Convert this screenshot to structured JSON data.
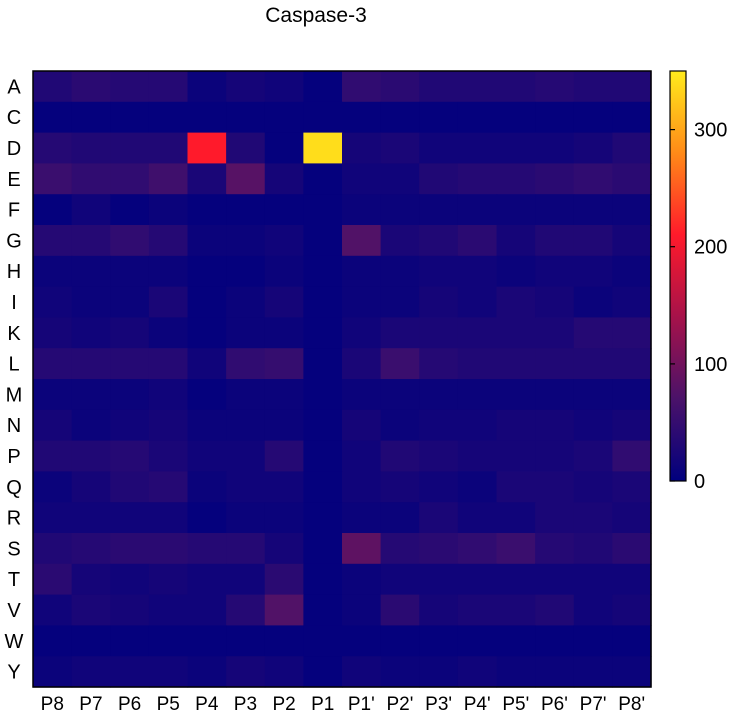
{
  "chart_data": {
    "type": "heatmap",
    "title": "Caspase-3",
    "xlabel": "",
    "ylabel": "",
    "x": [
      "P8",
      "P7",
      "P6",
      "P5",
      "P4",
      "P3",
      "P2",
      "P1",
      "P1'",
      "P2'",
      "P3'",
      "P4'",
      "P5'",
      "P6'",
      "P7'",
      "P8'"
    ],
    "y": [
      "A",
      "C",
      "D",
      "E",
      "F",
      "G",
      "H",
      "I",
      "K",
      "L",
      "M",
      "N",
      "P",
      "Q",
      "R",
      "S",
      "T",
      "V",
      "W",
      "Y"
    ],
    "values": [
      [
        30,
        40,
        35,
        35,
        10,
        20,
        15,
        5,
        45,
        40,
        30,
        30,
        30,
        35,
        30,
        30
      ],
      [
        5,
        5,
        5,
        5,
        5,
        5,
        5,
        5,
        5,
        5,
        5,
        5,
        5,
        5,
        5,
        5
      ],
      [
        35,
        30,
        30,
        30,
        210,
        30,
        5,
        340,
        20,
        25,
        15,
        15,
        15,
        15,
        20,
        30
      ],
      [
        55,
        45,
        45,
        60,
        25,
        80,
        20,
        5,
        15,
        15,
        30,
        35,
        35,
        40,
        45,
        40
      ],
      [
        5,
        15,
        5,
        10,
        5,
        5,
        5,
        5,
        10,
        10,
        10,
        10,
        10,
        10,
        10,
        10
      ],
      [
        35,
        35,
        45,
        35,
        10,
        10,
        15,
        5,
        75,
        25,
        30,
        40,
        20,
        30,
        30,
        20
      ],
      [
        10,
        10,
        10,
        10,
        5,
        5,
        10,
        5,
        10,
        10,
        15,
        15,
        10,
        15,
        15,
        10
      ],
      [
        15,
        10,
        10,
        25,
        5,
        10,
        20,
        5,
        10,
        10,
        20,
        15,
        25,
        20,
        10,
        15
      ],
      [
        20,
        15,
        20,
        10,
        5,
        10,
        10,
        5,
        15,
        25,
        25,
        25,
        25,
        25,
        35,
        35
      ],
      [
        35,
        35,
        35,
        35,
        15,
        45,
        50,
        5,
        25,
        55,
        35,
        30,
        30,
        30,
        30,
        30
      ],
      [
        10,
        10,
        10,
        15,
        5,
        10,
        10,
        5,
        10,
        10,
        10,
        10,
        10,
        10,
        10,
        10
      ],
      [
        20,
        10,
        15,
        20,
        10,
        10,
        10,
        5,
        20,
        10,
        15,
        15,
        20,
        20,
        15,
        20
      ],
      [
        30,
        30,
        35,
        25,
        15,
        15,
        35,
        5,
        15,
        30,
        25,
        20,
        20,
        20,
        25,
        45
      ],
      [
        10,
        20,
        30,
        35,
        10,
        15,
        15,
        5,
        15,
        20,
        15,
        10,
        25,
        25,
        20,
        25
      ],
      [
        15,
        15,
        15,
        15,
        5,
        10,
        10,
        5,
        10,
        10,
        25,
        15,
        15,
        25,
        25,
        20
      ],
      [
        30,
        35,
        40,
        40,
        35,
        35,
        20,
        5,
        85,
        35,
        40,
        45,
        55,
        35,
        30,
        40
      ],
      [
        40,
        20,
        15,
        20,
        15,
        15,
        40,
        5,
        10,
        15,
        15,
        15,
        15,
        15,
        15,
        15
      ],
      [
        15,
        25,
        20,
        15,
        15,
        35,
        75,
        5,
        10,
        40,
        20,
        25,
        25,
        30,
        15,
        20
      ],
      [
        5,
        5,
        5,
        5,
        5,
        5,
        5,
        5,
        5,
        5,
        5,
        5,
        5,
        5,
        5,
        5
      ],
      [
        10,
        15,
        15,
        15,
        10,
        20,
        15,
        5,
        15,
        10,
        10,
        15,
        10,
        10,
        10,
        10
      ]
    ],
    "zlim": [
      0,
      350
    ],
    "colorbar": {
      "ticks": [
        0,
        100,
        200,
        300
      ],
      "position": "right"
    },
    "colormap": [
      "#00007e",
      "#4a1269",
      "#a6124a",
      "#ff1a2b",
      "#ff8a18",
      "#ffeb1c"
    ],
    "grid": false
  }
}
